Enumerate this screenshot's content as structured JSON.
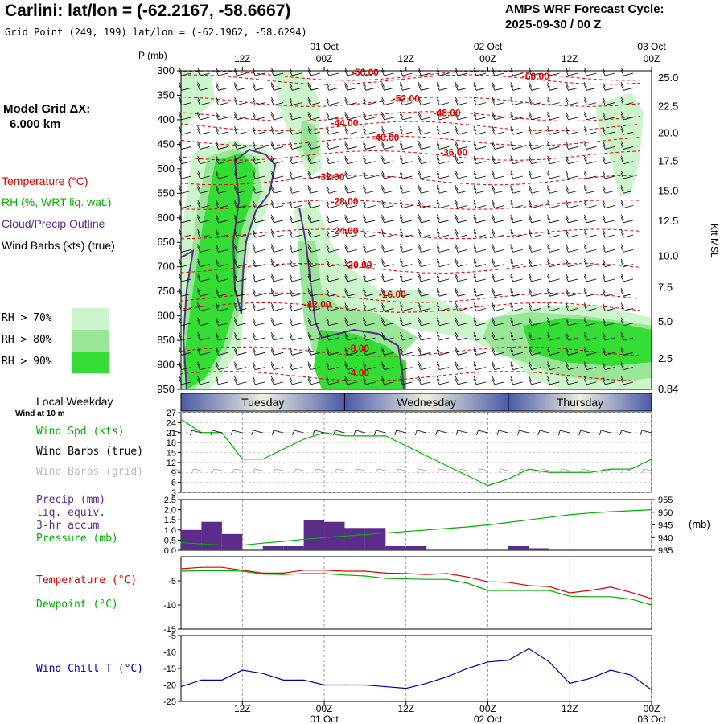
{
  "header": {
    "title": "Carlini:  lat/lon = (-62.2167, -58.6667)",
    "subtitle": "Grid Point (249, 199) lat/lon = (-62.1962, -58.6294)",
    "cycle_line1": "AMPS WRF Forecast Cycle:",
    "cycle_line2": "2025-09-30 / 00  Z"
  },
  "model_grid": {
    "line1": "Model Grid ΔX:",
    "line2": "6.000 km"
  },
  "legend": {
    "temperature": "Temperature (°C)",
    "rh": "RH (%, WRT liq. wat.)",
    "cloud": "Cloud/Precip Outline",
    "wind": "Wind Barbs (kts) (true)",
    "rh70": "RH > 70%",
    "rh80": "RH > 80%",
    "rh90": "RH > 90%",
    "local_weekday": "Local Weekday",
    "wind10": "Wind at 10 m",
    "wind_spd": "Wind Spd (kts)",
    "wind_barbs_true": "Wind Barbs (true)",
    "wind_barbs_grid": "Wind Barbs (grid)",
    "precip1": "Precip (mm)",
    "precip2": "liq. equiv.",
    "precip3": "3-hr accum",
    "pressure": "Pressure (mb)",
    "temp2": "Temperature (°C)",
    "dewpoint": "Dewpoint (°C)",
    "windchill": "Wind Chill T (°C)"
  },
  "colors": {
    "temperature": "#e00000",
    "rh": "#00b000",
    "cloud": "#5b2c8a",
    "rh70": "#ccf5cc",
    "rh80": "#99e699",
    "rh90": "#33dd33",
    "precip": "#5b2c8a",
    "windchill": "#0000aa",
    "weekday_dark": "#4a5aa8",
    "weekday_light": "#eeeee0"
  },
  "chart_data": [
    {
      "type": "heatmap",
      "x_unit": "forecast hour",
      "xlim": [
        3,
        72
      ],
      "x_ticks": [
        12,
        24,
        36,
        48,
        60,
        72
      ],
      "x_tick_labels": [
        "12Z",
        "00Z",
        "12Z",
        "00Z",
        "12Z",
        "00Z"
      ],
      "date_labels": [
        {
          "x": 24,
          "label": "01 Oct"
        },
        {
          "x": 48,
          "label": "02 Oct"
        },
        {
          "x": 72,
          "label": "03 Oct"
        }
      ],
      "ylabel": "P (mb)",
      "ylim": [
        950,
        300
      ],
      "y_ticks": [
        300,
        350,
        400,
        450,
        500,
        550,
        600,
        650,
        700,
        750,
        800,
        850,
        900,
        950
      ],
      "right_axis_label": "Kft MSL",
      "right_axis": [
        {
          "p": 315,
          "label": "25.0"
        },
        {
          "p": 373,
          "label": "22.5"
        },
        {
          "p": 427,
          "label": "20.0"
        },
        {
          "p": 485,
          "label": "17.5"
        },
        {
          "p": 545,
          "label": "15.0"
        },
        {
          "p": 607,
          "label": "12.5"
        },
        {
          "p": 678,
          "label": "10.0"
        },
        {
          "p": 742,
          "label": "7.5"
        },
        {
          "p": 812,
          "label": "5.0"
        },
        {
          "p": 888,
          "label": "2.5"
        },
        {
          "p": 950,
          "label": "0.84"
        }
      ],
      "temperature_labels": [
        {
          "t": 30,
          "p": 310,
          "label": "-56.00"
        },
        {
          "t": 55,
          "p": 318,
          "label": "-60.00"
        },
        {
          "t": 36,
          "p": 363,
          "label": "-52.00"
        },
        {
          "t": 42,
          "p": 393,
          "label": "-48.00"
        },
        {
          "t": 27,
          "p": 413,
          "label": "-44.00"
        },
        {
          "t": 33,
          "p": 443,
          "label": "-40.00"
        },
        {
          "t": 43,
          "p": 473,
          "label": "-36.00"
        },
        {
          "t": 25,
          "p": 523,
          "label": "-32.00"
        },
        {
          "t": 27,
          "p": 573,
          "label": "-28.00"
        },
        {
          "t": 27,
          "p": 633,
          "label": "-24.00"
        },
        {
          "t": 29,
          "p": 703,
          "label": "-20.00"
        },
        {
          "t": 34,
          "p": 763,
          "label": "-16.00"
        },
        {
          "t": 23,
          "p": 783,
          "label": "-12.00"
        },
        {
          "t": 29,
          "p": 873,
          "label": "-8.00"
        },
        {
          "t": 29,
          "p": 923,
          "label": "-4.00"
        }
      ],
      "weekdays": [
        "Tuesday",
        "Wednesday",
        "Thursday"
      ]
    },
    {
      "type": "line",
      "ylim": [
        3,
        27
      ],
      "y_ticks": [
        3,
        6,
        9,
        12,
        15,
        18,
        21,
        24,
        27
      ],
      "x": [
        3,
        6,
        9,
        12,
        15,
        18,
        21,
        24,
        27,
        30,
        33,
        36,
        39,
        42,
        45,
        48,
        51,
        54,
        57,
        60,
        63,
        66,
        69,
        72
      ],
      "series": [
        {
          "name": "Wind Spd (kts)",
          "values": [
            25,
            21,
            21,
            13,
            13,
            16,
            19,
            21,
            20,
            20,
            20,
            17,
            14,
            11,
            8,
            5,
            7,
            10,
            9,
            9,
            9,
            10,
            10,
            13
          ]
        }
      ]
    },
    {
      "type": "bar",
      "ylim": [
        0,
        2.5
      ],
      "y_ticks": [
        0.0,
        0.5,
        1.0,
        1.5,
        2.0,
        2.5
      ],
      "right_ylim": [
        935,
        955
      ],
      "right_ticks": [
        935,
        940,
        945,
        950,
        955
      ],
      "right_label": "(mb)",
      "x": [
        4.5,
        7.5,
        10.5,
        16.5,
        19.5,
        22.5,
        25.5,
        28.5,
        31.5,
        34.5,
        37.5,
        52.5,
        55.5
      ],
      "values": [
        1.0,
        1.4,
        0.8,
        0.2,
        0.2,
        1.5,
        1.4,
        1.1,
        1.1,
        0.2,
        0.2,
        0.2,
        0.1
      ],
      "series": [
        {
          "name": "Pressure (mb)",
          "x": [
            3,
            6,
            9,
            12,
            15,
            18,
            21,
            24,
            27,
            30,
            33,
            36,
            39,
            42,
            45,
            48,
            51,
            54,
            57,
            60,
            63,
            66,
            69,
            72
          ],
          "values": [
            938,
            937.5,
            937,
            937,
            937.8,
            938.5,
            939.3,
            940,
            940.6,
            941.2,
            941.8,
            942.4,
            943,
            943.6,
            944.2,
            945,
            946,
            947,
            948,
            949,
            949.7,
            950.2,
            950.6,
            951
          ]
        }
      ]
    },
    {
      "type": "line",
      "ylim": [
        -15,
        0
      ],
      "y_ticks": [
        -15,
        -10,
        -5
      ],
      "x": [
        3,
        6,
        9,
        12,
        15,
        18,
        21,
        24,
        27,
        30,
        33,
        36,
        39,
        42,
        45,
        48,
        51,
        54,
        57,
        60,
        63,
        66,
        69,
        72
      ],
      "series": [
        {
          "name": "Temperature (°C)",
          "values": [
            -2.5,
            -2.2,
            -2.2,
            -2.8,
            -3.4,
            -3.4,
            -2.8,
            -2.8,
            -3.0,
            -3.0,
            -3.4,
            -3.5,
            -3.7,
            -3.5,
            -4.2,
            -5.2,
            -5.3,
            -6.0,
            -6.2,
            -7.5,
            -7.0,
            -6.3,
            -7.4,
            -8.7
          ]
        },
        {
          "name": "Dewpoint (°C)",
          "values": [
            -3.0,
            -2.9,
            -2.9,
            -3.0,
            -3.6,
            -3.7,
            -3.5,
            -3.5,
            -3.8,
            -4.0,
            -4.5,
            -4.6,
            -4.7,
            -4.7,
            -5.5,
            -7.0,
            -7.0,
            -7.0,
            -7.0,
            -8.2,
            -8.3,
            -8.3,
            -8.8,
            -10.0
          ]
        }
      ]
    },
    {
      "type": "line",
      "ylim": [
        -25,
        -5
      ],
      "y_ticks": [
        -25,
        -20,
        -15,
        -10,
        -5
      ],
      "x": [
        3,
        6,
        9,
        12,
        15,
        18,
        21,
        24,
        27,
        30,
        33,
        36,
        39,
        42,
        45,
        48,
        51,
        54,
        57,
        60,
        63,
        66,
        69,
        72
      ],
      "series": [
        {
          "name": "Wind Chill T (°C)",
          "values": [
            -20.5,
            -18.5,
            -18.5,
            -15.5,
            -16.5,
            -18.5,
            -18.5,
            -20,
            -20,
            -20,
            -20.5,
            -21,
            -19.5,
            -17.5,
            -15,
            -13,
            -12.5,
            -9,
            -13,
            -19.5,
            -18,
            -15.5,
            -17,
            -21.5
          ]
        }
      ]
    }
  ]
}
